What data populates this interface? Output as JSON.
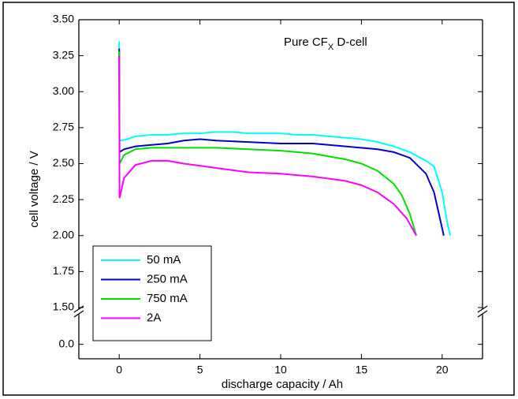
{
  "chart_data": {
    "type": "line",
    "annotation": {
      "text": "Pure CF",
      "subscript": "X",
      "suffix": " D-cell"
    },
    "xlabel": "discharge capacity / Ah",
    "ylabel": "cell voltage / V",
    "xlim": [
      -2.5,
      22.5
    ],
    "xticks": [
      0,
      5,
      10,
      15,
      20
    ],
    "ylim": [
      1.5,
      3.5
    ],
    "yticks": [
      {
        "value": 1.5,
        "label": "1.50"
      },
      {
        "value": 1.75,
        "label": "1.75"
      },
      {
        "value": 2,
        "label": "2.00"
      },
      {
        "value": 2.25,
        "label": "2.25"
      },
      {
        "value": 2.5,
        "label": "2.50"
      },
      {
        "value": 2.75,
        "label": "2.75"
      },
      {
        "value": 3,
        "label": "3.00"
      },
      {
        "value": 3.25,
        "label": "3.25"
      },
      {
        "value": 3.5,
        "label": "3.50"
      }
    ],
    "ylim_lower": [
      -0.1,
      0.2
    ],
    "yticks_lower": [
      {
        "value": 0,
        "label": "0.0"
      }
    ],
    "legend": "lower left",
    "series": [
      {
        "name": "50 mA",
        "color": "#00ffff",
        "x": [
          0,
          0.02,
          0.5,
          1,
          2,
          3,
          4,
          5,
          6,
          7,
          8,
          9,
          10,
          11,
          12,
          13,
          14,
          15,
          16,
          17,
          18,
          19,
          19.5,
          20,
          20.3,
          20.5
        ],
        "values": [
          3.35,
          2.66,
          2.67,
          2.69,
          2.7,
          2.7,
          2.71,
          2.71,
          2.72,
          2.72,
          2.71,
          2.71,
          2.71,
          2.7,
          2.7,
          2.69,
          2.68,
          2.67,
          2.65,
          2.62,
          2.58,
          2.52,
          2.48,
          2.3,
          2.1,
          2.0
        ]
      },
      {
        "name": "250 mA",
        "color": "#0000cc",
        "x": [
          0,
          0.02,
          0.3,
          1,
          2,
          3,
          4,
          5,
          6,
          8,
          10,
          12,
          14,
          16,
          17,
          18,
          19,
          19.5,
          19.8,
          20.1
        ],
        "values": [
          3.3,
          2.58,
          2.6,
          2.62,
          2.63,
          2.64,
          2.66,
          2.67,
          2.66,
          2.65,
          2.64,
          2.64,
          2.62,
          2.6,
          2.58,
          2.54,
          2.43,
          2.3,
          2.15,
          2.0
        ]
      },
      {
        "name": "750 mA",
        "color": "#00dd00",
        "x": [
          0,
          0.02,
          0.3,
          1,
          2,
          4,
          6,
          8,
          10,
          12,
          14,
          15,
          16,
          17,
          17.5,
          18,
          18.4
        ],
        "values": [
          3.28,
          2.5,
          2.56,
          2.6,
          2.61,
          2.61,
          2.61,
          2.6,
          2.59,
          2.57,
          2.53,
          2.5,
          2.45,
          2.36,
          2.28,
          2.15,
          2.0
        ]
      },
      {
        "name": "2A",
        "color": "#ff00ff",
        "x": [
          0,
          0.02,
          0.3,
          1,
          2,
          3,
          4,
          6,
          8,
          10,
          12,
          14,
          15,
          16,
          17,
          17.8,
          18.4
        ],
        "values": [
          3.25,
          2.26,
          2.4,
          2.49,
          2.52,
          2.52,
          2.5,
          2.47,
          2.44,
          2.43,
          2.41,
          2.38,
          2.35,
          2.3,
          2.22,
          2.12,
          2.0
        ]
      }
    ]
  }
}
